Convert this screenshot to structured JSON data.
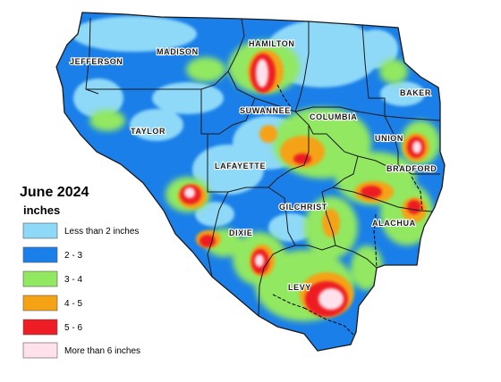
{
  "map": {
    "title": "June 2024",
    "units": "inches",
    "legend": [
      {
        "label": "Less than 2 inches",
        "color": "#8ed8f8"
      },
      {
        "label": "2 - 3",
        "color": "#1a7fe8"
      },
      {
        "label": "3 - 4",
        "color": "#92e860"
      },
      {
        "label": "4 - 5",
        "color": "#f5a315"
      },
      {
        "label": "5 - 6",
        "color": "#ee1c24"
      },
      {
        "label": "More than 6 inches",
        "color": "#ffe1ec"
      }
    ],
    "counties": [
      {
        "name": "JEFFERSON"
      },
      {
        "name": "MADISON"
      },
      {
        "name": "HAMILTON"
      },
      {
        "name": "BAKER"
      },
      {
        "name": "SUWANNEE"
      },
      {
        "name": "COLUMBIA"
      },
      {
        "name": "TAYLOR"
      },
      {
        "name": "UNION"
      },
      {
        "name": "BRADFORD"
      },
      {
        "name": "LAFAYETTE"
      },
      {
        "name": "GILCHRIST"
      },
      {
        "name": "ALACHUA"
      },
      {
        "name": "DIXIE"
      },
      {
        "name": "LEVY"
      }
    ]
  }
}
